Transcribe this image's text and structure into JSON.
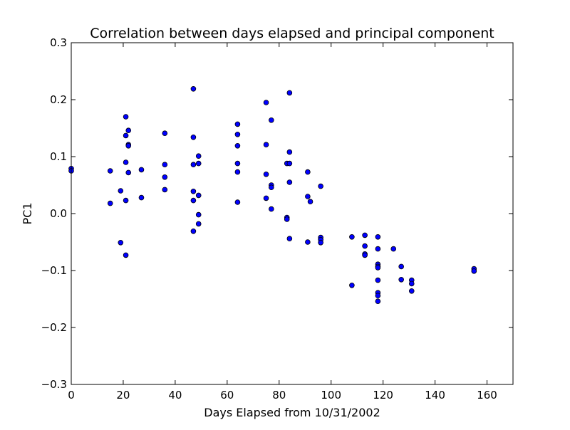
{
  "chart_data": {
    "type": "scatter",
    "title": "Correlation between days elapsed and principal component",
    "xlabel": "Days Elapsed from 10/31/2002",
    "ylabel": "PC1",
    "xlim": [
      0,
      170
    ],
    "ylim": [
      -0.3,
      0.3
    ],
    "xticks": [
      0,
      20,
      40,
      60,
      80,
      100,
      120,
      140,
      160
    ],
    "xtick_labels": [
      "0",
      "20",
      "40",
      "60",
      "80",
      "100",
      "120",
      "140",
      "160"
    ],
    "yticks": [
      -0.3,
      -0.2,
      -0.1,
      0.0,
      0.1,
      0.2,
      0.3
    ],
    "ytick_labels": [
      "−0.3",
      "−0.2",
      "−0.1",
      "0.0",
      "0.1",
      "0.2",
      "0.3"
    ],
    "grid": false,
    "marker_color": "#0000ff",
    "marker_edge_color": "#000000",
    "points": [
      {
        "x": 0,
        "y": 0.079
      },
      {
        "x": 0,
        "y": 0.075
      },
      {
        "x": 15,
        "y": 0.075
      },
      {
        "x": 15,
        "y": 0.018
      },
      {
        "x": 19,
        "y": 0.04
      },
      {
        "x": 19,
        "y": -0.051
      },
      {
        "x": 21,
        "y": 0.17
      },
      {
        "x": 21,
        "y": 0.137
      },
      {
        "x": 21,
        "y": 0.09
      },
      {
        "x": 21,
        "y": 0.023
      },
      {
        "x": 21,
        "y": -0.073
      },
      {
        "x": 22,
        "y": 0.146
      },
      {
        "x": 22,
        "y": 0.121
      },
      {
        "x": 22,
        "y": 0.119
      },
      {
        "x": 22,
        "y": 0.072
      },
      {
        "x": 27,
        "y": 0.077
      },
      {
        "x": 27,
        "y": 0.028
      },
      {
        "x": 36,
        "y": 0.141
      },
      {
        "x": 36,
        "y": 0.086
      },
      {
        "x": 36,
        "y": 0.064
      },
      {
        "x": 36,
        "y": 0.042
      },
      {
        "x": 47,
        "y": 0.219
      },
      {
        "x": 47,
        "y": 0.134
      },
      {
        "x": 47,
        "y": 0.086
      },
      {
        "x": 47,
        "y": 0.039
      },
      {
        "x": 47,
        "y": 0.023
      },
      {
        "x": 47,
        "y": -0.031
      },
      {
        "x": 49,
        "y": 0.101
      },
      {
        "x": 49,
        "y": 0.088
      },
      {
        "x": 49,
        "y": 0.032
      },
      {
        "x": 49,
        "y": -0.002
      },
      {
        "x": 49,
        "y": -0.018
      },
      {
        "x": 64,
        "y": 0.157
      },
      {
        "x": 64,
        "y": 0.139
      },
      {
        "x": 64,
        "y": 0.119
      },
      {
        "x": 64,
        "y": 0.088
      },
      {
        "x": 64,
        "y": 0.073
      },
      {
        "x": 64,
        "y": 0.02
      },
      {
        "x": 75,
        "y": 0.195
      },
      {
        "x": 75,
        "y": 0.121
      },
      {
        "x": 75,
        "y": 0.069
      },
      {
        "x": 75,
        "y": 0.027
      },
      {
        "x": 77,
        "y": 0.164
      },
      {
        "x": 77,
        "y": 0.05
      },
      {
        "x": 77,
        "y": 0.046
      },
      {
        "x": 77,
        "y": 0.008
      },
      {
        "x": 83,
        "y": 0.088
      },
      {
        "x": 83,
        "y": -0.007
      },
      {
        "x": 83,
        "y": -0.01
      },
      {
        "x": 84,
        "y": 0.212
      },
      {
        "x": 84,
        "y": 0.108
      },
      {
        "x": 84,
        "y": 0.088
      },
      {
        "x": 84,
        "y": 0.055
      },
      {
        "x": 84,
        "y": -0.044
      },
      {
        "x": 91,
        "y": 0.073
      },
      {
        "x": 91,
        "y": 0.03
      },
      {
        "x": 91,
        "y": -0.05
      },
      {
        "x": 92,
        "y": 0.021
      },
      {
        "x": 96,
        "y": 0.048
      },
      {
        "x": 96,
        "y": -0.042
      },
      {
        "x": 96,
        "y": -0.046
      },
      {
        "x": 96,
        "y": -0.051
      },
      {
        "x": 108,
        "y": -0.041
      },
      {
        "x": 108,
        "y": -0.126
      },
      {
        "x": 113,
        "y": -0.038
      },
      {
        "x": 113,
        "y": -0.057
      },
      {
        "x": 113,
        "y": -0.071
      },
      {
        "x": 113,
        "y": -0.073
      },
      {
        "x": 118,
        "y": -0.041
      },
      {
        "x": 118,
        "y": -0.062
      },
      {
        "x": 118,
        "y": -0.089
      },
      {
        "x": 118,
        "y": -0.093
      },
      {
        "x": 118,
        "y": -0.095
      },
      {
        "x": 118,
        "y": -0.117
      },
      {
        "x": 118,
        "y": -0.139
      },
      {
        "x": 118,
        "y": -0.144
      },
      {
        "x": 118,
        "y": -0.154
      },
      {
        "x": 124,
        "y": -0.062
      },
      {
        "x": 127,
        "y": -0.093
      },
      {
        "x": 127,
        "y": -0.116
      },
      {
        "x": 131,
        "y": -0.117
      },
      {
        "x": 131,
        "y": -0.123
      },
      {
        "x": 131,
        "y": -0.136
      },
      {
        "x": 155,
        "y": -0.097
      },
      {
        "x": 155,
        "y": -0.101
      }
    ]
  }
}
